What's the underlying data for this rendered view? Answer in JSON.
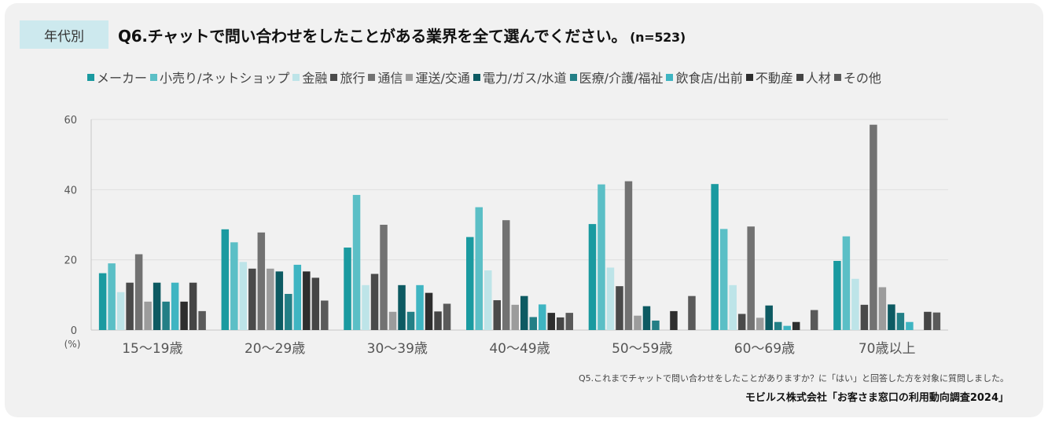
{
  "header": {
    "tag": "年代別",
    "question": "Q6.チャットで問い合わせをしたことがある業界を全て選んでください。",
    "sample": "(n=523)"
  },
  "footer": {
    "note": "Q5.これまでチャットで問い合わせをしたことがありますか？に「はい」と回答した方を対象に質問しました。",
    "source": "モビルス株式会社「お客さま窓口の利用動向調査2024」"
  },
  "chart_data": {
    "type": "bar",
    "title": "Q6.チャットで問い合わせをしたことがある業界を全て選んでください。(n=523)",
    "ylabel": "(%)",
    "xlabel": "",
    "ylim": [
      0,
      60
    ],
    "yticks": [
      0,
      20,
      40,
      60
    ],
    "grid": true,
    "legend_position": "top",
    "categories": [
      "15～19歳",
      "20～29歳",
      "30～39歳",
      "40～49歳",
      "50～59歳",
      "60～69歳",
      "70歳以上"
    ],
    "series": [
      {
        "name": "メーカー",
        "color": "#1a9aa0",
        "values": [
          16.2,
          28.7,
          23.5,
          26.5,
          30.2,
          41.6,
          19.7
        ]
      },
      {
        "name": "小売り/ネットショップ",
        "color": "#5bbfc6",
        "values": [
          19.0,
          25.0,
          38.5,
          35.0,
          41.5,
          28.8,
          26.7
        ]
      },
      {
        "name": "金融",
        "color": "#bde4e8",
        "values": [
          10.8,
          19.4,
          12.8,
          17.0,
          17.8,
          12.8,
          14.6
        ]
      },
      {
        "name": "旅行",
        "color": "#4a4a4a",
        "values": [
          13.5,
          17.5,
          16.0,
          8.5,
          12.5,
          4.6,
          7.2
        ]
      },
      {
        "name": "通信",
        "color": "#727272",
        "values": [
          21.6,
          27.8,
          30.0,
          31.3,
          42.4,
          29.5,
          58.5
        ]
      },
      {
        "name": "運送/交通",
        "color": "#9c9c9c",
        "values": [
          8.1,
          17.5,
          5.2,
          7.2,
          4.1,
          3.5,
          12.2
        ]
      },
      {
        "name": "電力/ガス/水道",
        "color": "#0d5a62",
        "values": [
          13.5,
          16.7,
          12.8,
          9.7,
          6.8,
          7.0,
          7.3
        ]
      },
      {
        "name": "医療/介護/福祉",
        "color": "#237f86",
        "values": [
          8.1,
          10.3,
          5.2,
          3.7,
          2.7,
          2.3,
          4.9
        ]
      },
      {
        "name": "飲食店/出前",
        "color": "#3fb5c2",
        "values": [
          13.5,
          18.6,
          12.8,
          7.3,
          0,
          1.2,
          2.3
        ]
      },
      {
        "name": "不動産",
        "color": "#2e2e2e",
        "values": [
          8.1,
          16.7,
          10.6,
          4.9,
          5.4,
          2.3,
          0
        ]
      },
      {
        "name": "人材",
        "color": "#454545",
        "values": [
          13.5,
          14.9,
          5.3,
          3.6,
          0,
          0,
          5.2
        ]
      },
      {
        "name": "その他",
        "color": "#5a5a5a",
        "values": [
          5.4,
          8.4,
          7.5,
          4.9,
          9.7,
          5.7,
          5.0
        ]
      }
    ]
  }
}
